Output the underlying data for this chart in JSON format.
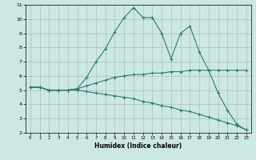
{
  "xlabel": "Humidex (Indice chaleur)",
  "bg_color": "#cce8e4",
  "grid_color": "#b0b0b0",
  "line_color": "#2e7d6e",
  "xlim": [
    -0.5,
    23.5
  ],
  "ylim": [
    2,
    11
  ],
  "yticks": [
    2,
    3,
    4,
    5,
    6,
    7,
    8,
    9,
    10,
    11
  ],
  "xticks": [
    0,
    1,
    2,
    3,
    4,
    5,
    6,
    7,
    8,
    9,
    10,
    11,
    12,
    13,
    14,
    15,
    16,
    17,
    18,
    19,
    20,
    21,
    22,
    23
  ],
  "series": [
    [
      5.2,
      5.2,
      5.0,
      5.0,
      5.0,
      5.1,
      5.9,
      7.0,
      7.9,
      9.1,
      10.1,
      10.8,
      10.1,
      10.1,
      9.0,
      7.2,
      9.0,
      9.5,
      7.7,
      6.4,
      4.8,
      3.6,
      2.6,
      2.2
    ],
    [
      5.2,
      5.2,
      5.0,
      5.0,
      5.0,
      5.1,
      5.3,
      5.5,
      5.7,
      5.9,
      6.0,
      6.1,
      6.1,
      6.2,
      6.2,
      6.3,
      6.3,
      6.4,
      6.4,
      6.4,
      6.4,
      6.4,
      6.4,
      6.4
    ],
    [
      5.2,
      5.2,
      5.0,
      5.0,
      5.0,
      5.0,
      4.9,
      4.8,
      4.7,
      4.6,
      4.5,
      4.4,
      4.2,
      4.1,
      3.9,
      3.8,
      3.6,
      3.5,
      3.3,
      3.1,
      2.9,
      2.7,
      2.5,
      2.2
    ]
  ]
}
